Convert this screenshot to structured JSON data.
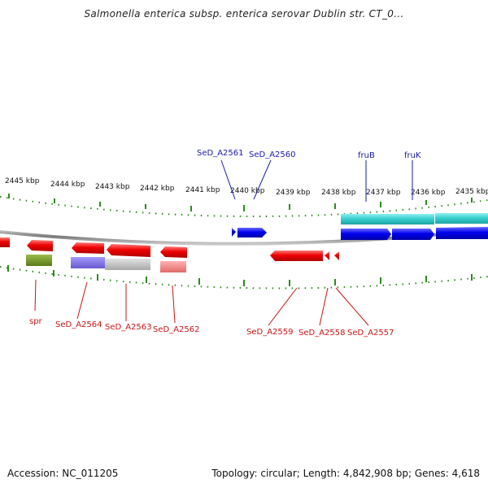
{
  "title": "Salmonella enterica subsp. enterica serovar Dublin str. CT_0...",
  "footer": {
    "accession": "Accession: NC_011205",
    "summary": "Topology: circular; Length: 4,842,908 bp; Genes: 4,618"
  },
  "colors": {
    "backbone": "#8c8c8c",
    "tick": "#2e8b1e",
    "forward_gene": "#0000ee",
    "reverse_gene": "#ee0000",
    "forward_label": "#1a1aa8",
    "reverse_label": "#c81414",
    "cyan_feature": "#33cccc",
    "olive_feature": "#6b8e23",
    "purple_feature": "#7b68ee",
    "grey_feature": "#c0c0c0",
    "pink_feature": "#f08080"
  },
  "kbp_labels": [
    "2445 kbp",
    "2444 kbp",
    "2443 kbp",
    "2442 kbp",
    "2441 kbp",
    "2440 kbp",
    "2439 kbp",
    "2438 kbp",
    "2437 kbp",
    "2436 kbp",
    "2435 kbp"
  ],
  "forward_gene_labels": [
    "SeD_A2561",
    "SeD_A2560",
    "fruB",
    "fruK"
  ],
  "reverse_gene_labels": [
    "spr",
    "SeD_A2564",
    "SeD_A2563",
    "SeD_A2562",
    "SeD_A2559",
    "SeD_A2558",
    "SeD_A2557"
  ]
}
